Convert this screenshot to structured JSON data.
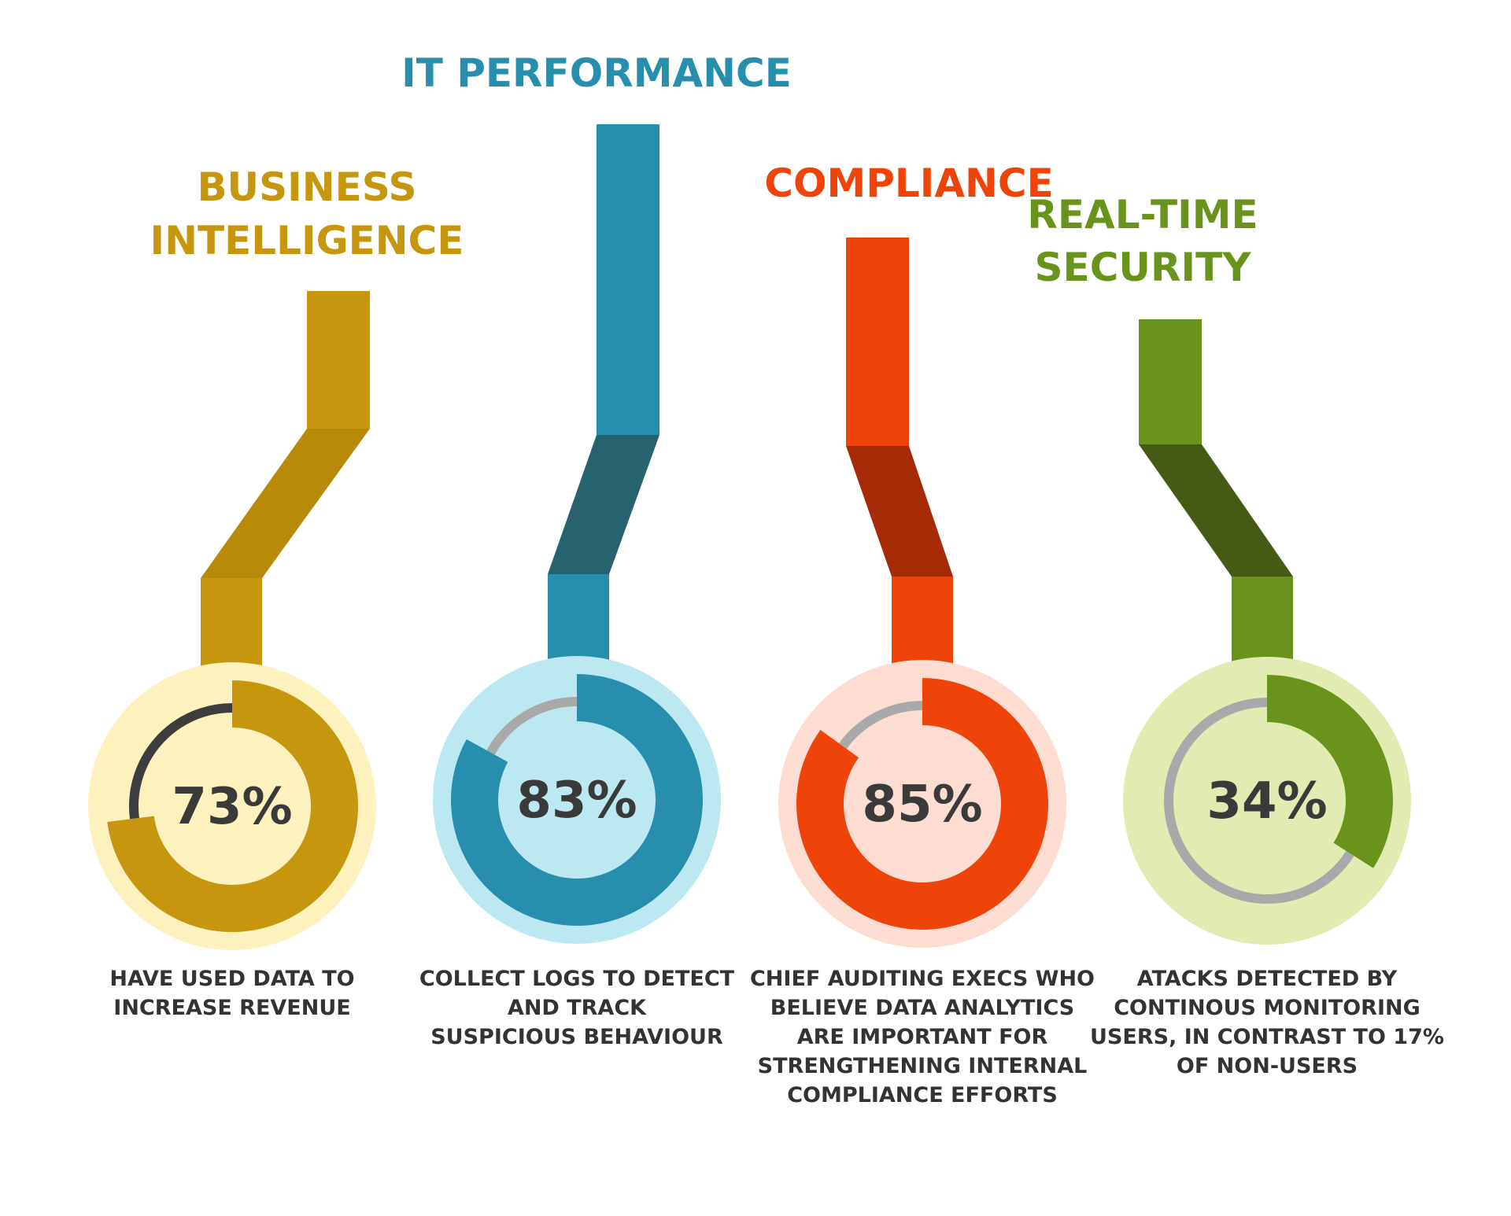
{
  "chart_data": {
    "type": "donut",
    "unit": "%",
    "items": [
      {
        "title_lines": [
          "BUSINESS",
          "INTELLIGENCE"
        ],
        "value": 73,
        "value_label": "73%",
        "description_lines": [
          "HAVE USED DATA TO",
          "INCREASE REVENUE"
        ],
        "colors": {
          "main": "#C6960F",
          "dark": "#B88A0A",
          "light": "#FDF2BE",
          "track": "#3D3D3D"
        }
      },
      {
        "title_lines": [
          "IT PERFORMANCE"
        ],
        "value": 83,
        "value_label": "83%",
        "description_lines": [
          "COLLECT LOGS TO DETECT",
          "AND TRACK",
          "SUSPICIOUS BEHAVIOUR"
        ],
        "colors": {
          "main": "#288EAE",
          "dark": "#26636F",
          "light": "#BCE9F1",
          "track": "#A9A9A9"
        }
      },
      {
        "title_lines": [
          "COMPLIANCE"
        ],
        "value": 85,
        "value_label": "85%",
        "description_lines": [
          "CHIEF AUDITING EXECS WHO",
          "BELIEVE DATA ANALYTICS",
          "ARE IMPORTANT FOR",
          "STRENGTHENING INTERNAL",
          "COMPLIANCE EFFORTS"
        ],
        "colors": {
          "main": "#EE4409",
          "dark": "#A62A06",
          "light": "#FDDDD2",
          "track": "#A9A9A9"
        }
      },
      {
        "title_lines": [
          "REAL-TIME",
          "SECURITY"
        ],
        "value": 34,
        "value_label": "34%",
        "description_lines": [
          "ATACKS DETECTED BY",
          "CONTINOUS MONITORING",
          "USERS, IN CONTRAST TO 17%",
          "OF NON-USERS"
        ],
        "colors": {
          "main": "#6A931C",
          "dark": "#455A13",
          "light": "#E2EBB1",
          "track": "#A9A9A9"
        }
      }
    ]
  }
}
